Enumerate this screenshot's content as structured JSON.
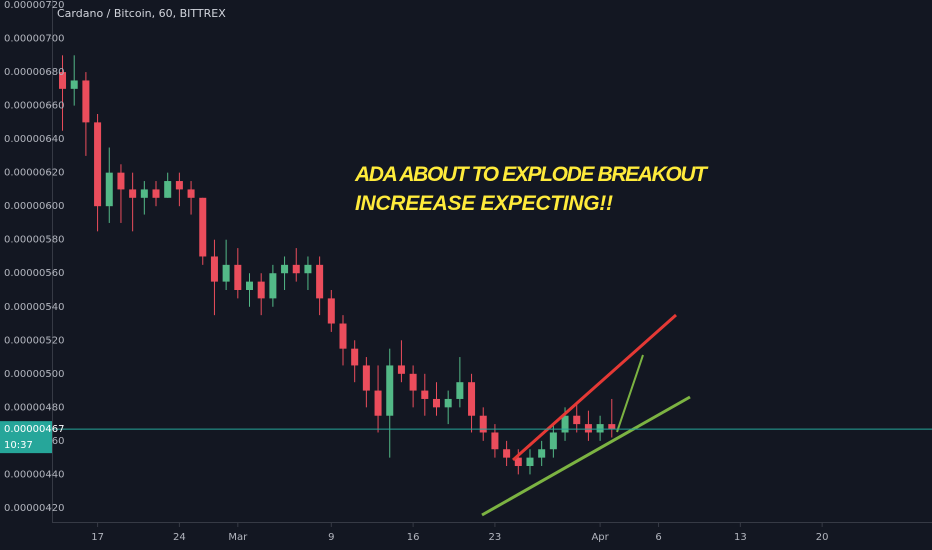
{
  "chart_data": {
    "type": "candlestick",
    "title": "Cardano / Bitcoin, 60, BITTREX",
    "annotations": [
      "ADA ABOUT TO EXPLODE BREAKOUT",
      "INCREEASE EXPECTING!!"
    ],
    "up_color": "#53b987",
    "down_color": "#eb4d5c",
    "grid": false,
    "xlim": [
      44.1,
      119.4
    ],
    "xticks": [
      {
        "value": 48,
        "label": "17"
      },
      {
        "value": 55,
        "label": "24"
      },
      {
        "value": 60,
        "label": "Mar"
      },
      {
        "value": 68,
        "label": "9"
      },
      {
        "value": 75,
        "label": "16"
      },
      {
        "value": 82,
        "label": "23"
      },
      {
        "value": 91,
        "label": "Apr"
      },
      {
        "value": 96,
        "label": "6"
      },
      {
        "value": 103,
        "label": "13"
      },
      {
        "value": 110,
        "label": "20"
      }
    ],
    "ylim": [
      4.116e-06,
      7.23e-06
    ],
    "yticks": [
      {
        "value": 4.2e-06,
        "label": "0.00000420"
      },
      {
        "value": 4.4e-06,
        "label": "0.00000440"
      },
      {
        "value": 4.6e-06,
        "label": "0.00000460"
      },
      {
        "value": 4.8e-06,
        "label": "0.00000480"
      },
      {
        "value": 5e-06,
        "label": "0.00000500"
      },
      {
        "value": 5.2e-06,
        "label": "0.00000520"
      },
      {
        "value": 5.4e-06,
        "label": "0.00000540"
      },
      {
        "value": 5.6e-06,
        "label": "0.00000560"
      },
      {
        "value": 5.8e-06,
        "label": "0.00000580"
      },
      {
        "value": 6e-06,
        "label": "0.00000600"
      },
      {
        "value": 6.2e-06,
        "label": "0.00000620"
      },
      {
        "value": 6.4e-06,
        "label": "0.00000640"
      },
      {
        "value": 6.6e-06,
        "label": "0.00000660"
      },
      {
        "value": 6.8e-06,
        "label": "0.00000680"
      },
      {
        "value": 7e-06,
        "label": "0.00000700"
      },
      {
        "value": 7.2e-06,
        "label": "0.00000720"
      }
    ],
    "last_price": {
      "value": 4.67e-06,
      "label": "0.00000467"
    },
    "countdown": "10:37",
    "candles": {
      "x": [
        45,
        46,
        47,
        48,
        49,
        50,
        51,
        52,
        53,
        54,
        55,
        56,
        57,
        58,
        59,
        60,
        61,
        62,
        63,
        64,
        65,
        66,
        67,
        68,
        69,
        70,
        71,
        72,
        73,
        74,
        75,
        76,
        77,
        78,
        79,
        80,
        81,
        82,
        83,
        84,
        85,
        86,
        87,
        88,
        89,
        90,
        91,
        92
      ],
      "open": [
        6.8e-06,
        6.7e-06,
        6.75e-06,
        6.5e-06,
        6e-06,
        6.2e-06,
        6.1e-06,
        6.05e-06,
        6.1e-06,
        6.05e-06,
        6.15e-06,
        6.1e-06,
        6.05e-06,
        5.7e-06,
        5.55e-06,
        5.65e-06,
        5.5e-06,
        5.55e-06,
        5.45e-06,
        5.6e-06,
        5.65e-06,
        5.6e-06,
        5.65e-06,
        5.45e-06,
        5.3e-06,
        5.15e-06,
        5.05e-06,
        4.9e-06,
        4.75e-06,
        5.05e-06,
        5e-06,
        4.9e-06,
        4.85e-06,
        4.8e-06,
        4.85e-06,
        4.95e-06,
        4.75e-06,
        4.65e-06,
        4.55e-06,
        4.5e-06,
        4.45e-06,
        4.5e-06,
        4.55e-06,
        4.65e-06,
        4.75e-06,
        4.7e-06,
        4.65e-06,
        4.7e-06
      ],
      "high": [
        6.9e-06,
        6.9e-06,
        6.8e-06,
        6.55e-06,
        6.35e-06,
        6.25e-06,
        6.2e-06,
        6.15e-06,
        6.15e-06,
        6.2e-06,
        6.2e-06,
        6.15e-06,
        6.05e-06,
        5.8e-06,
        5.8e-06,
        5.75e-06,
        5.6e-06,
        5.6e-06,
        5.65e-06,
        5.7e-06,
        5.75e-06,
        5.7e-06,
        5.7e-06,
        5.5e-06,
        5.35e-06,
        5.2e-06,
        5.1e-06,
        5.05e-06,
        5.15e-06,
        5.2e-06,
        5.05e-06,
        5e-06,
        4.95e-06,
        4.9e-06,
        5.1e-06,
        5e-06,
        4.8e-06,
        4.7e-06,
        4.6e-06,
        4.55e-06,
        4.55e-06,
        4.6e-06,
        4.7e-06,
        4.8e-06,
        4.82e-06,
        4.78e-06,
        4.75e-06,
        4.85e-06
      ],
      "low": [
        6.45e-06,
        6.6e-06,
        6.3e-06,
        5.85e-06,
        5.9e-06,
        5.9e-06,
        5.85e-06,
        5.95e-06,
        6e-06,
        6.05e-06,
        6e-06,
        5.95e-06,
        5.65e-06,
        5.35e-06,
        5.5e-06,
        5.45e-06,
        5.4e-06,
        5.35e-06,
        5.4e-06,
        5.5e-06,
        5.55e-06,
        5.5e-06,
        5.35e-06,
        5.25e-06,
        5.05e-06,
        4.95e-06,
        4.8e-06,
        4.65e-06,
        4.5e-06,
        4.95e-06,
        4.8e-06,
        4.75e-06,
        4.75e-06,
        4.7e-06,
        4.8e-06,
        4.65e-06,
        4.6e-06,
        4.5e-06,
        4.45e-06,
        4.4e-06,
        4.4e-06,
        4.45e-06,
        4.5e-06,
        4.6e-06,
        4.65e-06,
        4.6e-06,
        4.6e-06,
        4.62e-06
      ],
      "close": [
        6.7e-06,
        6.75e-06,
        6.5e-06,
        6e-06,
        6.2e-06,
        6.1e-06,
        6.05e-06,
        6.1e-06,
        6.05e-06,
        6.15e-06,
        6.1e-06,
        6.05e-06,
        5.7e-06,
        5.55e-06,
        5.65e-06,
        5.5e-06,
        5.55e-06,
        5.45e-06,
        5.6e-06,
        5.65e-06,
        5.6e-06,
        5.65e-06,
        5.45e-06,
        5.3e-06,
        5.15e-06,
        5.05e-06,
        4.9e-06,
        4.75e-06,
        5.05e-06,
        5e-06,
        4.9e-06,
        4.85e-06,
        4.8e-06,
        4.85e-06,
        4.95e-06,
        4.75e-06,
        4.65e-06,
        4.55e-06,
        4.5e-06,
        4.45e-06,
        4.5e-06,
        4.55e-06,
        4.65e-06,
        4.75e-06,
        4.7e-06,
        4.65e-06,
        4.7e-06,
        4.67e-06
      ]
    }
  }
}
